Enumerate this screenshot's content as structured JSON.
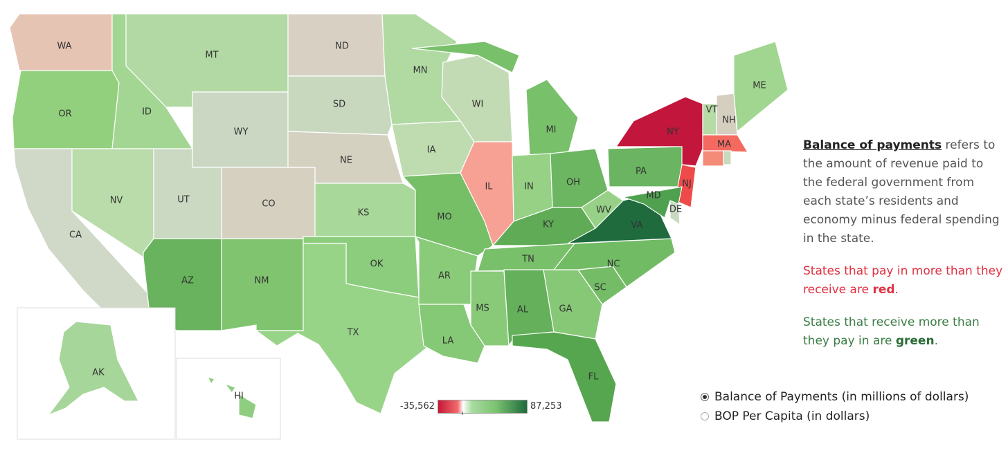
{
  "legend": {
    "min": "-35,562",
    "max": "87,253",
    "colors": [
      "#c41838",
      "#f26b6b",
      "#ffffff",
      "#a8dca0",
      "#7cc270",
      "#1e6b3c"
    ]
  },
  "description": {
    "term": "Balance of payments",
    "definition": " refers to the amount of revenue paid to the federal  government from each state’s residents and economy minus federal spending in the state.",
    "red_prefix": "States that pay in more than they receive are ",
    "red_word": "red",
    "green_prefix": "States that receive more than they pay in are ",
    "green_word": "green",
    "period": "."
  },
  "metric_toggle": {
    "options": [
      {
        "label": "Balance of Payments (in millions of dollars)",
        "selected": true
      },
      {
        "label": "BOP Per Capita (in dollars)",
        "selected": false
      }
    ]
  },
  "map": {
    "states": [
      {
        "code": "WA",
        "label": "WA",
        "color": "#e6c4b4"
      },
      {
        "code": "OR",
        "label": "OR",
        "color": "#93d07e"
      },
      {
        "code": "CA",
        "label": "CA",
        "color": "#d0d9c8"
      },
      {
        "code": "ID",
        "label": "ID",
        "color": "#a2d692"
      },
      {
        "code": "NV",
        "label": "NV",
        "color": "#b9dcaa"
      },
      {
        "code": "MT",
        "label": "MT",
        "color": "#b2d9a3"
      },
      {
        "code": "WY",
        "label": "WY",
        "color": "#ccd7c3"
      },
      {
        "code": "UT",
        "label": "UT",
        "color": "#cbd8c2"
      },
      {
        "code": "AZ",
        "label": "AZ",
        "color": "#69b35e"
      },
      {
        "code": "CO",
        "label": "CO",
        "color": "#d6d0c1"
      },
      {
        "code": "NM",
        "label": "NM",
        "color": "#80c46f"
      },
      {
        "code": "ND",
        "label": "ND",
        "color": "#d8d1c3"
      },
      {
        "code": "SD",
        "label": "SD",
        "color": "#c8d8bf"
      },
      {
        "code": "NE",
        "label": "NE",
        "color": "#d5d1c1"
      },
      {
        "code": "KS",
        "label": "KS",
        "color": "#a9d99a"
      },
      {
        "code": "OK",
        "label": "OK",
        "color": "#8ccc7d"
      },
      {
        "code": "TX",
        "label": "TX",
        "color": "#98d488"
      },
      {
        "code": "MN",
        "label": "MN",
        "color": "#b1daa2"
      },
      {
        "code": "IA",
        "label": "IA",
        "color": "#bedcb0"
      },
      {
        "code": "MO",
        "label": "MO",
        "color": "#76bf67"
      },
      {
        "code": "AR",
        "label": "AR",
        "color": "#8acb7a"
      },
      {
        "code": "LA",
        "label": "LA",
        "color": "#85c875"
      },
      {
        "code": "WI",
        "label": "WI",
        "color": "#c3dbb5"
      },
      {
        "code": "IL",
        "label": "IL",
        "color": "#f6a194"
      },
      {
        "code": "MI",
        "label": "MI",
        "color": "#78c06a"
      },
      {
        "code": "IN",
        "label": "IN",
        "color": "#96d186"
      },
      {
        "code": "OH",
        "label": "OH",
        "color": "#6cb661"
      },
      {
        "code": "KY",
        "label": "KY",
        "color": "#5fab56"
      },
      {
        "code": "TN",
        "label": "TN",
        "color": "#79c06a"
      },
      {
        "code": "MS",
        "label": "MS",
        "color": "#89ca79"
      },
      {
        "code": "AL",
        "label": "AL",
        "color": "#64b05b"
      },
      {
        "code": "GA",
        "label": "GA",
        "color": "#87c877"
      },
      {
        "code": "FL",
        "label": "FL",
        "color": "#56a64f"
      },
      {
        "code": "SC",
        "label": "SC",
        "color": "#74bd66"
      },
      {
        "code": "NC",
        "label": "NC",
        "color": "#72bb65"
      },
      {
        "code": "VA",
        "label": "VA",
        "color": "#1f6b3e"
      },
      {
        "code": "WV",
        "label": "WV",
        "color": "#96d187"
      },
      {
        "code": "PA",
        "label": "PA",
        "color": "#6ab462"
      },
      {
        "code": "NY",
        "label": "NY",
        "color": "#c2163c"
      },
      {
        "code": "NJ",
        "label": "NJ",
        "color": "#ee4a4a"
      },
      {
        "code": "DE",
        "label": "DE",
        "color": "#c7dabf"
      },
      {
        "code": "MD",
        "label": "MD",
        "color": "#4fa150"
      },
      {
        "code": "VT",
        "label": "VT",
        "color": "#b6dba6"
      },
      {
        "code": "NH",
        "label": "NH",
        "color": "#d5cfc0"
      },
      {
        "code": "ME",
        "label": "ME",
        "color": "#a0d690"
      },
      {
        "code": "MA",
        "label": "MA",
        "color": "#f46a60"
      },
      {
        "code": "CT",
        "label": "",
        "color": "#f48a78"
      },
      {
        "code": "RI",
        "label": "",
        "color": "#c9dabd"
      },
      {
        "code": "AK",
        "label": "AK",
        "color": "#a6d699"
      },
      {
        "code": "HI",
        "label": "HI",
        "color": "#8fce80"
      }
    ]
  }
}
